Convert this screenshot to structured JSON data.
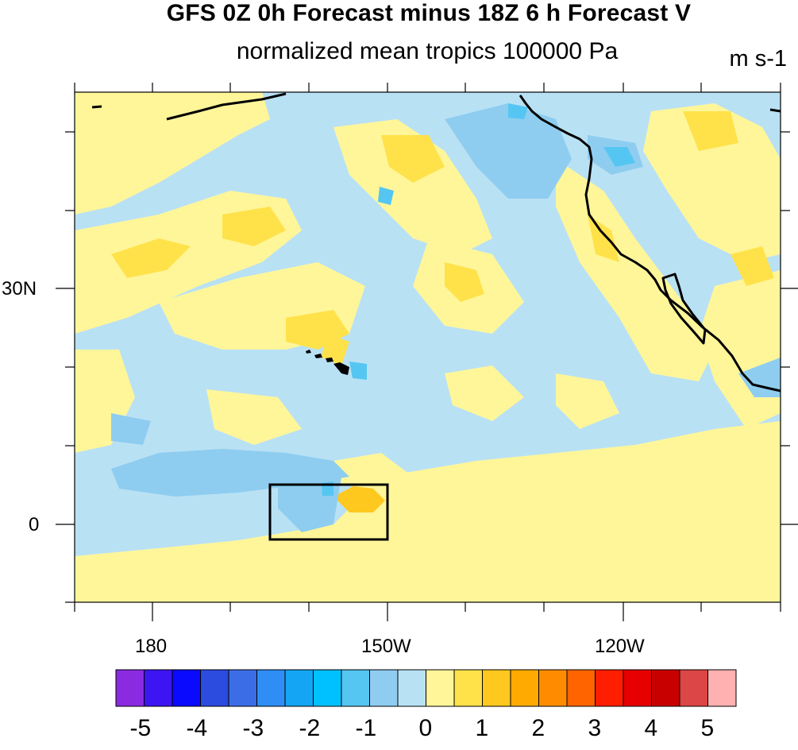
{
  "title": "GFS 0Z 0h Forecast minus 18Z 6 h Forecast V",
  "subtitle": "normalized mean tropics 100000 Pa",
  "units": "m s-1",
  "lat_labels": [
    "30N",
    "0"
  ],
  "lon_labels": [
    "180",
    "150W",
    "120W"
  ],
  "colorbar": {
    "labels": [
      "-5",
      "-4",
      "-3",
      "-2",
      "-1",
      "0",
      "1",
      "2",
      "3",
      "4",
      "5"
    ],
    "colors": [
      "#8a2be2",
      "#3d14f2",
      "#0a0aff",
      "#2c4bdf",
      "#3b6ee6",
      "#2f8ef6",
      "#14a6f4",
      "#00c1ff",
      "#55c6f2",
      "#8ecdf0",
      "#b9e1f4",
      "#fff69a",
      "#ffe24a",
      "#ffc81e",
      "#ffaa00",
      "#ff8c00",
      "#ff6400",
      "#ff1e00",
      "#e60000",
      "#c80000",
      "#dc4646",
      "#ffb0b0"
    ]
  },
  "map": {
    "land_color": "#000000",
    "box_region": "equatorial box near 165W-150W, 2S-5N"
  }
}
